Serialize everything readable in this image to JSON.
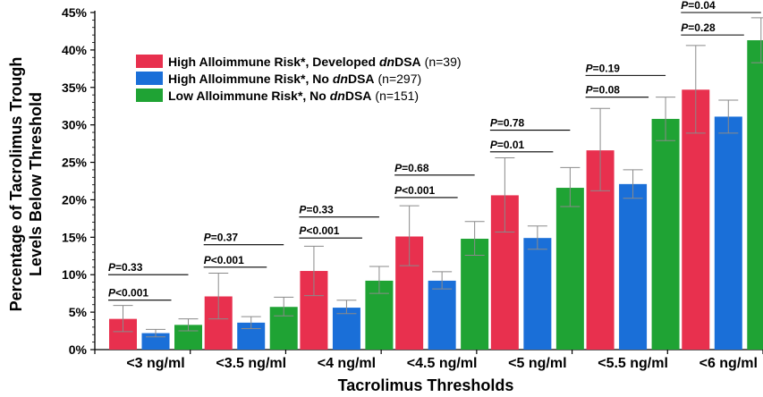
{
  "chart_data": {
    "type": "bar",
    "title": "",
    "xlabel": "Tacrolimus Thresholds",
    "ylabel_lines": [
      "Percentage of Tacrolimus Trough",
      "Levels Below Threshold"
    ],
    "ylim": [
      0,
      45
    ],
    "y_ticks": [
      "0%",
      "5%",
      "10%",
      "15%",
      "20%",
      "25%",
      "30%",
      "35%",
      "40%",
      "45%"
    ],
    "categories": [
      "<3 ng/ml",
      "<3.5 ng/ml",
      "<4 ng/ml",
      "<4.5 ng/ml",
      "<5 ng/ml",
      "<5.5 ng/ml",
      "<6 ng/ml"
    ],
    "series": [
      {
        "name": "High Alloimmune Risk*, Developed dnDSA",
        "name_parts": [
          "High Alloimmune Risk*, Developed ",
          "dn",
          "DSA"
        ],
        "n_label": "(n=39)",
        "color": "#e8304e",
        "values": [
          4.1,
          7.1,
          10.5,
          15.1,
          20.6,
          26.6,
          34.7
        ],
        "error_low": [
          2.4,
          4.1,
          7.2,
          11.2,
          15.7,
          21.2,
          28.9
        ],
        "error_high": [
          5.9,
          10.2,
          13.8,
          19.2,
          25.6,
          32.2,
          40.6
        ]
      },
      {
        "name": "High Alloimmune Risk*, No dnDSA",
        "name_parts": [
          "High Alloimmune Risk*, No ",
          "dn",
          "DSA"
        ],
        "n_label": "(n=297)",
        "color": "#1a6fd8",
        "values": [
          2.2,
          3.6,
          5.6,
          9.2,
          14.9,
          22.1,
          31.1
        ],
        "error_low": [
          1.7,
          2.8,
          4.8,
          8.1,
          13.4,
          20.2,
          28.9
        ],
        "error_high": [
          2.7,
          4.4,
          6.6,
          10.4,
          16.5,
          24.0,
          33.3
        ]
      },
      {
        "name": "Low Alloimmune Risk*, No dnDSA",
        "name_parts": [
          "Low Alloimmune Risk*, No ",
          "dn",
          "DSA"
        ],
        "n_label": "(n=151)",
        "color": "#1fa334",
        "values": [
          3.3,
          5.7,
          9.2,
          14.8,
          21.6,
          30.8,
          41.3
        ],
        "error_low": [
          2.5,
          4.5,
          7.5,
          12.6,
          19.1,
          27.9,
          38.3
        ],
        "error_high": [
          4.1,
          7.0,
          11.1,
          17.1,
          24.3,
          33.7,
          44.3
        ]
      }
    ],
    "annotations": [
      {
        "category_index": 0,
        "label_p": "P",
        "label_rest": "=0.33",
        "level": 10.0,
        "span": "wide"
      },
      {
        "category_index": 0,
        "label_p": "P",
        "label_rest": "<0.001",
        "level": 6.6,
        "span": "narrow"
      },
      {
        "category_index": 1,
        "label_p": "P",
        "label_rest": "=0.37",
        "level": 14.0,
        "span": "wide"
      },
      {
        "category_index": 1,
        "label_p": "P",
        "label_rest": "<0.001",
        "level": 11.0,
        "span": "narrow"
      },
      {
        "category_index": 2,
        "label_p": "P",
        "label_rest": "=0.33",
        "level": 17.7,
        "span": "wide"
      },
      {
        "category_index": 2,
        "label_p": "P",
        "label_rest": "<0.001",
        "level": 14.9,
        "span": "narrow"
      },
      {
        "category_index": 3,
        "label_p": "P",
        "label_rest": "=0.68",
        "level": 23.3,
        "span": "wide"
      },
      {
        "category_index": 3,
        "label_p": "P",
        "label_rest": "<0.001",
        "level": 20.3,
        "span": "narrow"
      },
      {
        "category_index": 4,
        "label_p": "P",
        "label_rest": "=0.78",
        "level": 29.3,
        "span": "wide"
      },
      {
        "category_index": 4,
        "label_p": "P",
        "label_rest": "=0.01",
        "level": 26.4,
        "span": "narrow"
      },
      {
        "category_index": 5,
        "label_p": "P",
        "label_rest": "=0.19",
        "level": 36.6,
        "span": "wide"
      },
      {
        "category_index": 5,
        "label_p": "P",
        "label_rest": "=0.08",
        "level": 33.7,
        "span": "narrow"
      },
      {
        "category_index": 6,
        "label_p": "P",
        "label_rest": "=0.04",
        "level": 45.0,
        "span": "wide"
      },
      {
        "category_index": 6,
        "label_p": "P",
        "label_rest": "=0.28",
        "level": 42.0,
        "span": "narrow"
      }
    ],
    "grid": false,
    "legend_position": "top-left"
  }
}
